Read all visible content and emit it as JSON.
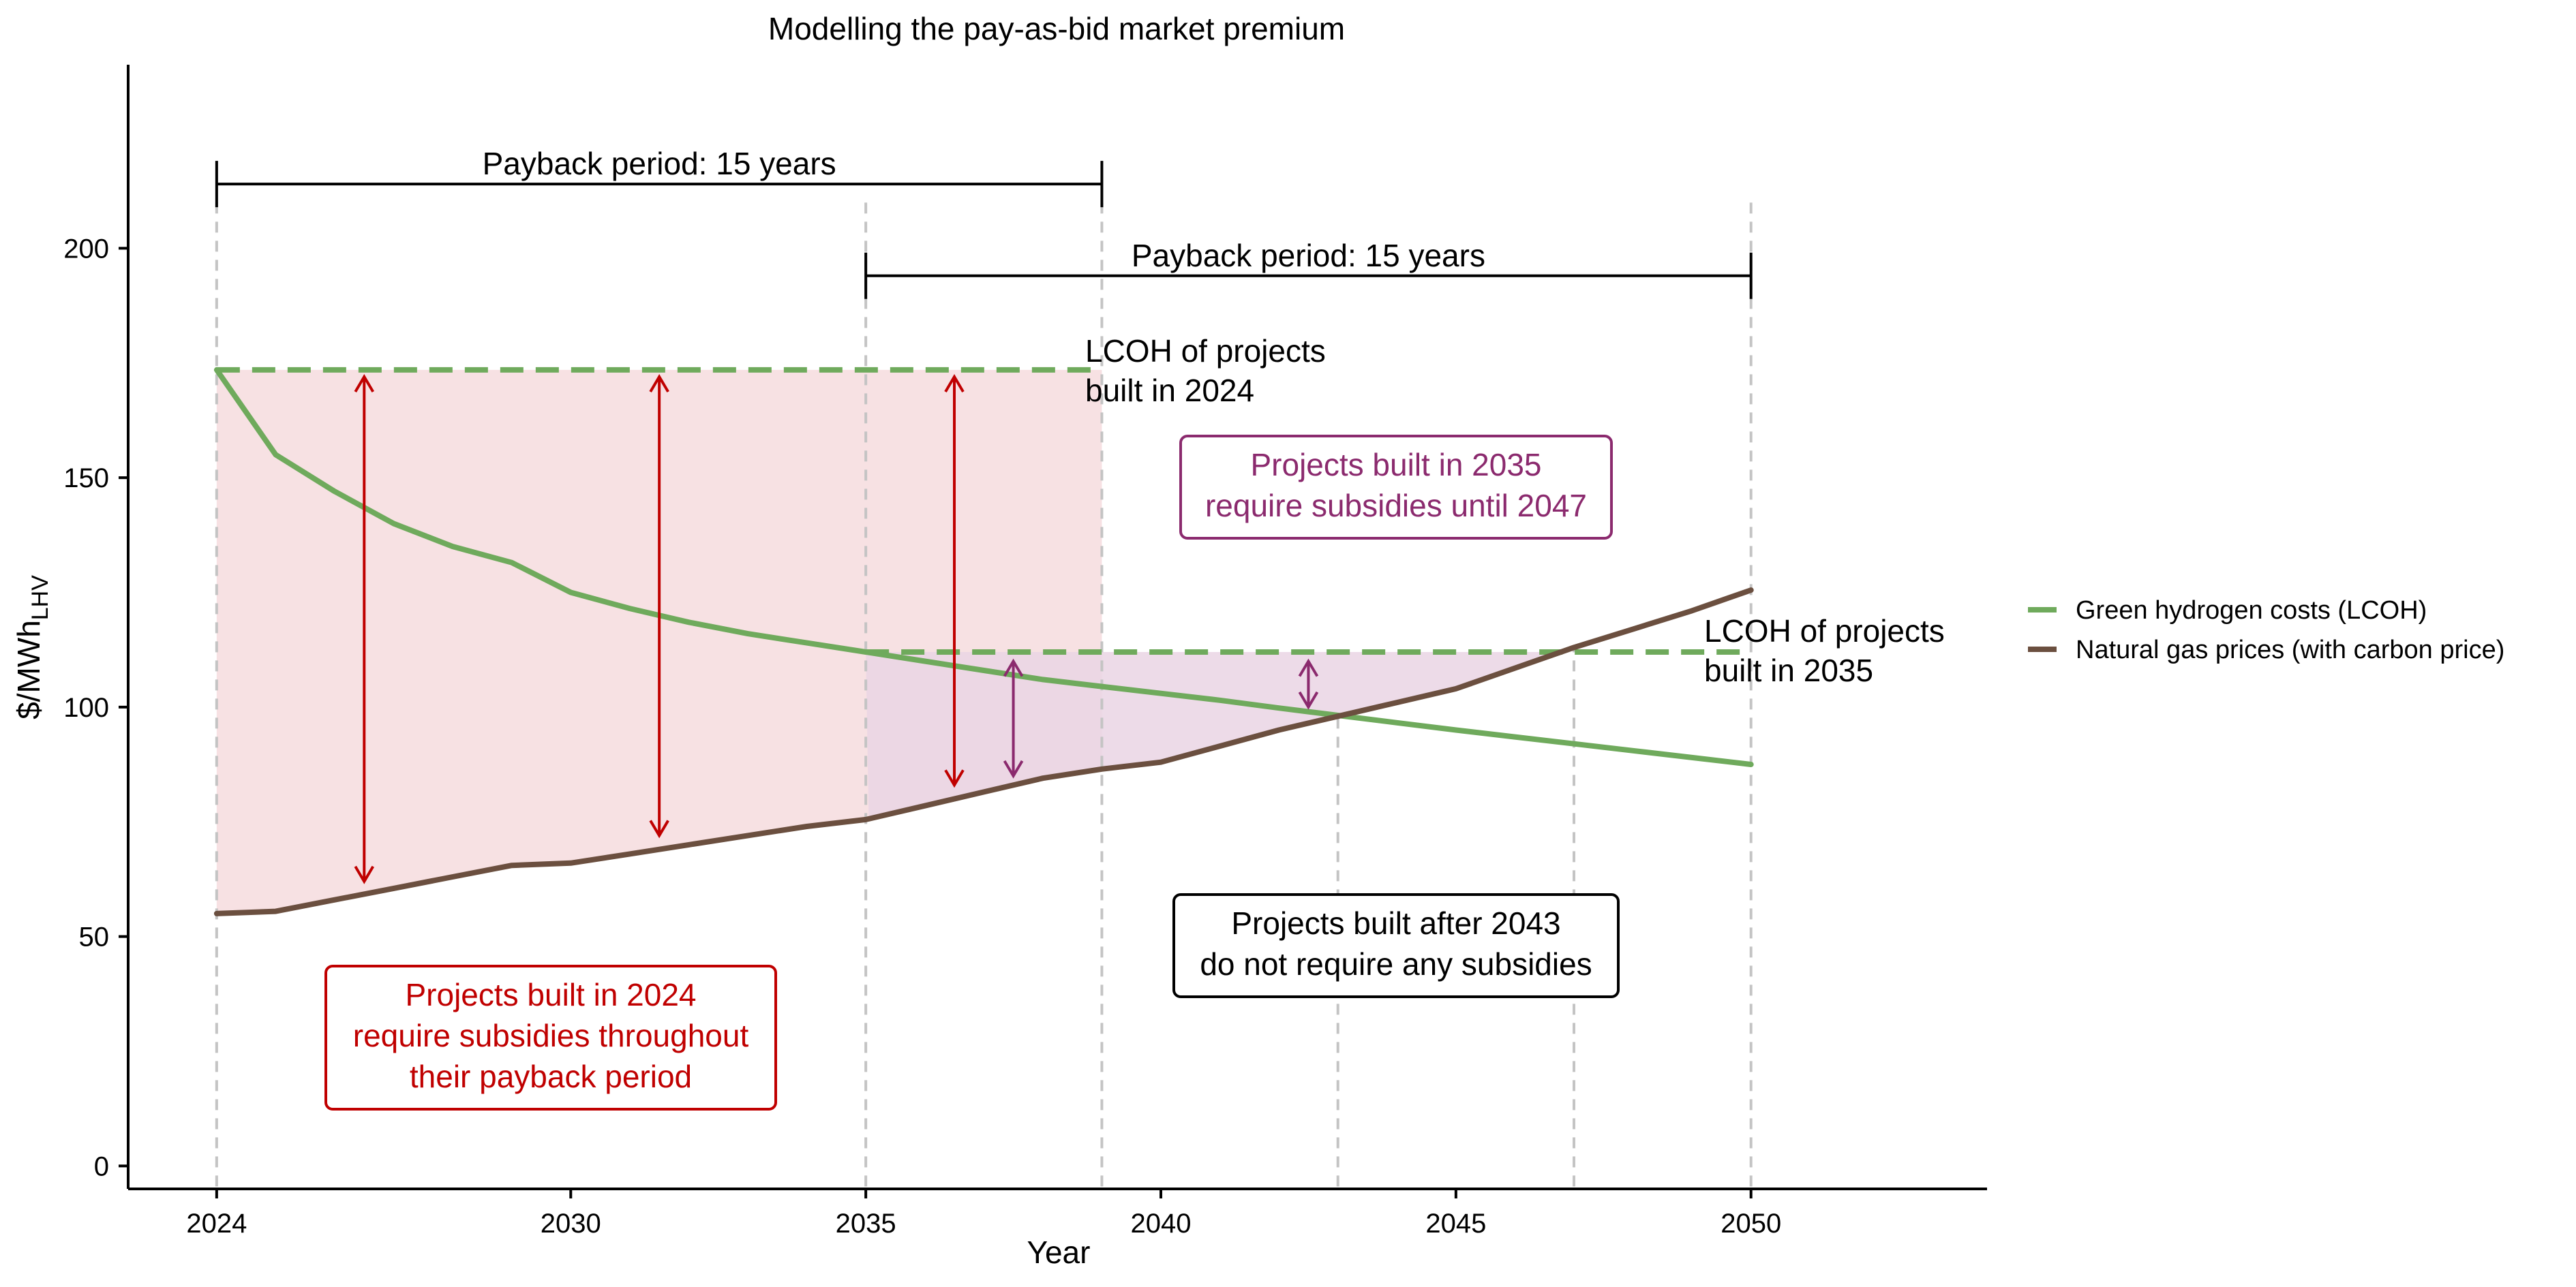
{
  "chart_data": {
    "type": "line",
    "title": "Modelling the pay-as-bid market premium",
    "xlabel": "Year",
    "ylabel_main": "$/MWh",
    "ylabel_sub": "LHV",
    "xlim": [
      2022.5,
      2054.0
    ],
    "ylim": [
      -5,
      240
    ],
    "xticks": [
      2024,
      2030,
      2035,
      2040,
      2045,
      2050
    ],
    "yticks": [
      0,
      50,
      100,
      150,
      200
    ],
    "grid": false,
    "legend_position": "right",
    "series": [
      {
        "name": "Green hydrogen costs (LCOH)",
        "color": "#6faa5c",
        "x": [
          2024,
          2025,
          2026,
          2027,
          2028,
          2029,
          2030,
          2031,
          2032,
          2033,
          2034,
          2035,
          2036,
          2037,
          2038,
          2039,
          2040,
          2041,
          2042,
          2043,
          2044,
          2045,
          2046,
          2047,
          2048,
          2049,
          2050
        ],
        "y": [
          173.5,
          155,
          147,
          140,
          135,
          131.5,
          125,
          121.5,
          118.5,
          116,
          114,
          112,
          110,
          108,
          106,
          104.5,
          103,
          101.5,
          99.8,
          98.2,
          96.6,
          95,
          93.5,
          92,
          90.5,
          89,
          87.5
        ]
      },
      {
        "name": "Natural gas prices (with carbon price)",
        "color": "#6b4f3f",
        "x": [
          2024,
          2025,
          2026,
          2027,
          2028,
          2029,
          2030,
          2031,
          2032,
          2033,
          2034,
          2035,
          2036,
          2037,
          2038,
          2039,
          2040,
          2041,
          2042,
          2043,
          2044,
          2045,
          2046,
          2047,
          2048,
          2049,
          2050
        ],
        "y": [
          55,
          55.5,
          58,
          60.5,
          63,
          65.5,
          66,
          68,
          70,
          72,
          74,
          75.5,
          78.5,
          81.5,
          84.5,
          86.5,
          88,
          91.5,
          95,
          98,
          101,
          104,
          108.5,
          113,
          117,
          121,
          125.5
        ]
      }
    ],
    "lcoh_levels": [
      {
        "label_line1": "LCOH of projects",
        "label_line2": "built in 2024",
        "value": 173.5,
        "from": 2024,
        "to": 2039
      },
      {
        "label_line1": "LCOH of projects",
        "label_line2": "built in 2035",
        "value": 112,
        "from": 2035,
        "to": 2050
      }
    ],
    "payback_periods": [
      {
        "label": "Payback period: 15 years",
        "from": 2024,
        "to": 2039,
        "y": 214
      },
      {
        "label": "Payback period: 15 years",
        "from": 2035,
        "to": 2050,
        "y": 194
      }
    ],
    "vertical_guides": [
      2024,
      2035,
      2039,
      2043,
      2047,
      2050
    ],
    "subsidy_arrows_2024": [
      {
        "x": 2026.5,
        "y_low": 62,
        "y_high": 172
      },
      {
        "x": 2031.5,
        "y_low": 72,
        "y_high": 172
      },
      {
        "x": 2036.5,
        "y_low": 83,
        "y_high": 172
      }
    ],
    "subsidy_arrows_2035": [
      {
        "x": 2037.5,
        "y_low": 85,
        "y_high": 110
      },
      {
        "x": 2042.5,
        "y_low": 100,
        "y_high": 110
      }
    ],
    "annotations": [
      {
        "id": "red",
        "lines": [
          "Projects built in 2024",
          "require subsidies throughout",
          "their payback period"
        ],
        "color": "#c00000"
      },
      {
        "id": "purple",
        "lines": [
          "Projects built in 2035",
          "require subsidies until 2047"
        ],
        "color": "#8b2a6e"
      },
      {
        "id": "black",
        "lines": [
          "Projects built after 2043",
          "do not require any subsidies"
        ],
        "color": "#000000"
      }
    ],
    "colors": {
      "red_fill": "#f7e1e3",
      "purple_fill": "#ead5e4",
      "red": "#c00000",
      "purple": "#8b2a6e",
      "guide": "#c4c4c4"
    }
  }
}
